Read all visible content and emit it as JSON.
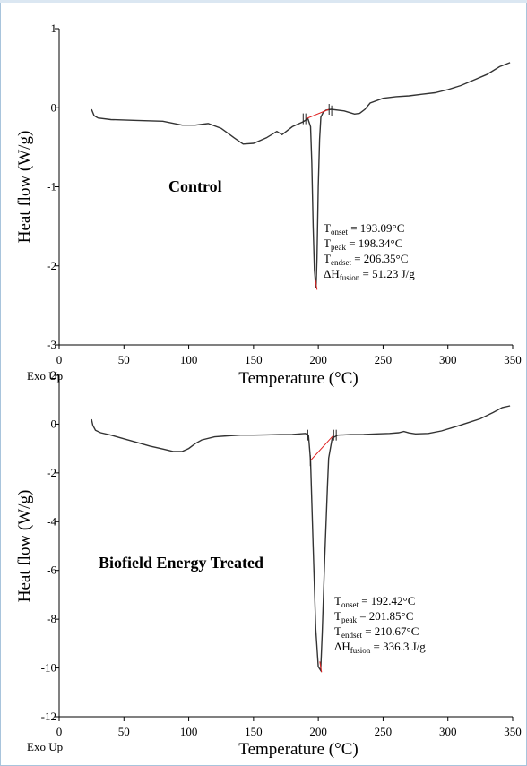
{
  "chart_data": [
    {
      "type": "line",
      "title": "Control",
      "xlabel": "Temperature (°C)",
      "ylabel": "Heat flow (W/g)",
      "corner_label": "Exo Up",
      "xlim": [
        0,
        350
      ],
      "ylim": [
        -3,
        1
      ],
      "xticks": [
        0,
        50,
        100,
        150,
        200,
        250,
        300,
        350
      ],
      "yticks": [
        -3,
        -2,
        -1,
        0,
        1
      ],
      "series": [
        {
          "color": "#333333",
          "x": [
            25,
            27,
            30,
            40,
            60,
            80,
            95,
            105,
            115,
            125,
            135,
            142,
            150,
            160,
            168,
            172,
            180,
            188,
            192,
            194,
            195,
            196,
            197,
            198,
            198.34,
            199,
            200,
            201,
            202,
            204,
            206,
            210,
            220,
            228,
            232,
            236,
            240,
            250,
            260,
            270,
            280,
            290,
            300,
            310,
            320,
            330,
            340,
            348
          ],
          "y": [
            -0.02,
            -0.1,
            -0.13,
            -0.15,
            -0.16,
            -0.17,
            -0.22,
            -0.22,
            -0.2,
            -0.26,
            -0.38,
            -0.46,
            -0.45,
            -0.38,
            -0.3,
            -0.34,
            -0.24,
            -0.18,
            -0.14,
            -0.24,
            -0.7,
            -1.5,
            -2.05,
            -2.26,
            -2.28,
            -1.9,
            -1.0,
            -0.4,
            -0.12,
            -0.05,
            -0.03,
            -0.02,
            -0.04,
            -0.08,
            -0.07,
            -0.02,
            0.06,
            0.12,
            0.14,
            0.15,
            0.17,
            0.19,
            0.23,
            0.28,
            0.35,
            0.42,
            0.52,
            0.57
          ]
        }
      ],
      "annotations": [
        {
          "label": "T",
          "sub": "onset",
          "value": " = 193.09°C"
        },
        {
          "label": "T",
          "sub": "peak",
          "value": " = 198.34°C"
        },
        {
          "label": "T",
          "sub": "endset",
          "value": " = 206.35°C"
        },
        {
          "label": "ΔH",
          "sub": "fusion",
          "value": " = 51.23 J/g"
        }
      ]
    },
    {
      "type": "line",
      "title": "Biofield Energy Treated",
      "xlabel": "Temperature (°C)",
      "ylabel": "Heat flow (W/g)",
      "corner_label": "Exo Up",
      "xlim": [
        0,
        350
      ],
      "ylim": [
        -12,
        2
      ],
      "xticks": [
        0,
        50,
        100,
        150,
        200,
        250,
        300,
        350
      ],
      "yticks": [
        -12,
        -10,
        -8,
        -6,
        -4,
        -2,
        0,
        2
      ],
      "series": [
        {
          "color": "#333333",
          "x": [
            25,
            26,
            28,
            32,
            40,
            50,
            60,
            70,
            80,
            88,
            95,
            100,
            105,
            110,
            120,
            130,
            140,
            150,
            160,
            170,
            180,
            190,
            192.42,
            194,
            196,
            198,
            200,
            201.85,
            203,
            205,
            207,
            208,
            210.67,
            215,
            225,
            235,
            245,
            255,
            262,
            266,
            270,
            275,
            285,
            295,
            305,
            315,
            325,
            335,
            342,
            348
          ],
          "y": [
            0.2,
            -0.05,
            -0.25,
            -0.35,
            -0.45,
            -0.6,
            -0.75,
            -0.9,
            -1.02,
            -1.12,
            -1.12,
            -1.0,
            -0.8,
            -0.65,
            -0.52,
            -0.48,
            -0.45,
            -0.45,
            -0.44,
            -0.43,
            -0.42,
            -0.38,
            -0.45,
            -1.5,
            -5.0,
            -8.4,
            -9.95,
            -10.1,
            -8.6,
            -5.4,
            -2.6,
            -1.4,
            -0.58,
            -0.45,
            -0.43,
            -0.42,
            -0.4,
            -0.38,
            -0.35,
            -0.3,
            -0.36,
            -0.4,
            -0.38,
            -0.28,
            -0.12,
            0.05,
            0.22,
            0.48,
            0.68,
            0.75
          ]
        }
      ],
      "annotations": [
        {
          "label": "T",
          "sub": "onset",
          "value": " = 192.42°C"
        },
        {
          "label": "T",
          "sub": "peak",
          "value": " = 201.85°C"
        },
        {
          "label": "T",
          "sub": "endset",
          "value": " = 210.67°C"
        },
        {
          "label": "ΔH",
          "sub": "fusion",
          "value": " = 336.3 J/g"
        }
      ]
    }
  ]
}
